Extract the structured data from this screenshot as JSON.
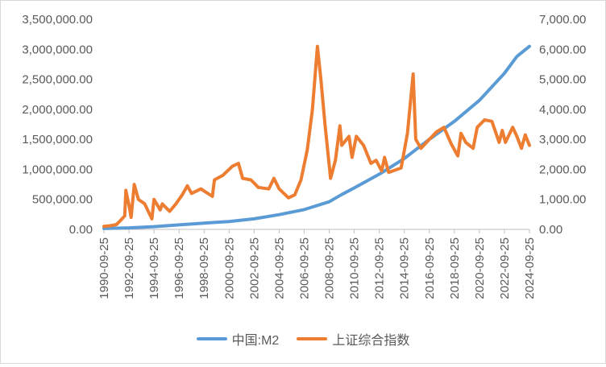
{
  "chart_data": {
    "type": "line",
    "x_start": "1990-09-25",
    "x_end": "2024-09-25",
    "x_tick_labels": [
      "1990-09-25",
      "1992-09-25",
      "1994-09-25",
      "1996-09-25",
      "1998-09-25",
      "2000-09-25",
      "2002-09-25",
      "2004-09-25",
      "2006-09-25",
      "2008-09-25",
      "2010-09-25",
      "2012-09-25",
      "2014-09-25",
      "2016-09-25",
      "2018-09-25",
      "2020-09-25",
      "2022-09-25",
      "2024-09-25"
    ],
    "y_left": {
      "min": 0,
      "max": 3500000,
      "tick_labels": [
        "0.00",
        "500,000.00",
        "1,000,000.00",
        "1,500,000.00",
        "2,000,000.00",
        "2,500,000.00",
        "3,000,000.00",
        "3,500,000.00"
      ]
    },
    "y_right": {
      "min": 0,
      "max": 7000,
      "tick_labels": [
        "0.00",
        "1,000.00",
        "2,000.00",
        "3,000.00",
        "4,000.00",
        "5,000.00",
        "6,000.00",
        "7,000.00"
      ]
    },
    "grid": false,
    "legend_position": "bottom",
    "series": [
      {
        "name": "中国:M2",
        "axis": "left",
        "color": "#5B9BD5",
        "points": [
          [
            "1990-09-25",
            15000
          ],
          [
            "1992-09-25",
            25000
          ],
          [
            "1994-09-25",
            45000
          ],
          [
            "1996-09-25",
            75000
          ],
          [
            "1998-09-25",
            105000
          ],
          [
            "2000-09-25",
            130000
          ],
          [
            "2002-09-25",
            175000
          ],
          [
            "2004-09-25",
            245000
          ],
          [
            "2006-09-25",
            330000
          ],
          [
            "2008-09-25",
            460000
          ],
          [
            "2009-09-25",
            580000
          ],
          [
            "2010-09-25",
            690000
          ],
          [
            "2012-09-25",
            920000
          ],
          [
            "2014-09-25",
            1180000
          ],
          [
            "2016-09-25",
            1500000
          ],
          [
            "2018-09-25",
            1800000
          ],
          [
            "2020-09-25",
            2150000
          ],
          [
            "2022-09-25",
            2600000
          ],
          [
            "2023-09-25",
            2880000
          ],
          [
            "2024-09-25",
            3050000
          ]
        ]
      },
      {
        "name": "上证综合指数",
        "axis": "right",
        "color": "#ED7D31",
        "points": [
          [
            "1990-09-25",
            100
          ],
          [
            "1991-03-25",
            120
          ],
          [
            "1991-09-25",
            160
          ],
          [
            "1992-01-25",
            300
          ],
          [
            "1992-05-25",
            450
          ],
          [
            "1992-06-25",
            1300
          ],
          [
            "1992-09-25",
            800
          ],
          [
            "1992-11-25",
            400
          ],
          [
            "1993-02-25",
            1500
          ],
          [
            "1993-06-25",
            1000
          ],
          [
            "1993-12-25",
            850
          ],
          [
            "1994-07-25",
            350
          ],
          [
            "1994-09-25",
            1000
          ],
          [
            "1995-03-25",
            650
          ],
          [
            "1995-05-25",
            850
          ],
          [
            "1995-12-25",
            600
          ],
          [
            "1996-06-25",
            850
          ],
          [
            "1996-12-25",
            1150
          ],
          [
            "1997-05-25",
            1450
          ],
          [
            "1997-09-25",
            1200
          ],
          [
            "1998-06-25",
            1350
          ],
          [
            "1999-05-25",
            1100
          ],
          [
            "1999-07-25",
            1650
          ],
          [
            "2000-03-25",
            1800
          ],
          [
            "2000-12-25",
            2100
          ],
          [
            "2001-06-25",
            2200
          ],
          [
            "2001-10-25",
            1700
          ],
          [
            "2002-06-25",
            1650
          ],
          [
            "2003-01-25",
            1400
          ],
          [
            "2003-11-25",
            1350
          ],
          [
            "2004-04-25",
            1700
          ],
          [
            "2004-09-25",
            1350
          ],
          [
            "2005-06-25",
            1050
          ],
          [
            "2005-12-25",
            1150
          ],
          [
            "2006-06-25",
            1650
          ],
          [
            "2006-12-25",
            2650
          ],
          [
            "2007-05-25",
            4000
          ],
          [
            "2007-10-16",
            6100
          ],
          [
            "2008-01-25",
            5000
          ],
          [
            "2008-05-25",
            3500
          ],
          [
            "2008-11-04",
            1700
          ],
          [
            "2009-03-25",
            2300
          ],
          [
            "2009-08-04",
            3450
          ],
          [
            "2009-09-25",
            2800
          ],
          [
            "2010-04-25",
            3100
          ],
          [
            "2010-07-25",
            2400
          ],
          [
            "2010-11-25",
            3100
          ],
          [
            "2011-06-25",
            2800
          ],
          [
            "2012-01-25",
            2200
          ],
          [
            "2012-06-25",
            2300
          ],
          [
            "2012-12-04",
            1950
          ],
          [
            "2013-02-25",
            2400
          ],
          [
            "2013-06-25",
            1900
          ],
          [
            "2014-06-25",
            2050
          ],
          [
            "2014-12-25",
            3200
          ],
          [
            "2015-06-12",
            5180
          ],
          [
            "2015-08-25",
            3000
          ],
          [
            "2016-01-25",
            2700
          ],
          [
            "2016-09-25",
            3000
          ],
          [
            "2017-04-25",
            3250
          ],
          [
            "2017-11-25",
            3400
          ],
          [
            "2018-06-25",
            2850
          ],
          [
            "2019-01-04",
            2450
          ],
          [
            "2019-04-08",
            3200
          ],
          [
            "2019-08-25",
            2900
          ],
          [
            "2020-03-25",
            2700
          ],
          [
            "2020-07-25",
            3400
          ],
          [
            "2021-02-25",
            3650
          ],
          [
            "2021-09-25",
            3600
          ],
          [
            "2022-04-25",
            2900
          ],
          [
            "2022-07-25",
            3300
          ],
          [
            "2022-10-25",
            2900
          ],
          [
            "2023-05-25",
            3400
          ],
          [
            "2023-09-25",
            3100
          ],
          [
            "2024-02-05",
            2700
          ],
          [
            "2024-05-25",
            3150
          ],
          [
            "2024-09-25",
            2800
          ]
        ]
      }
    ]
  }
}
